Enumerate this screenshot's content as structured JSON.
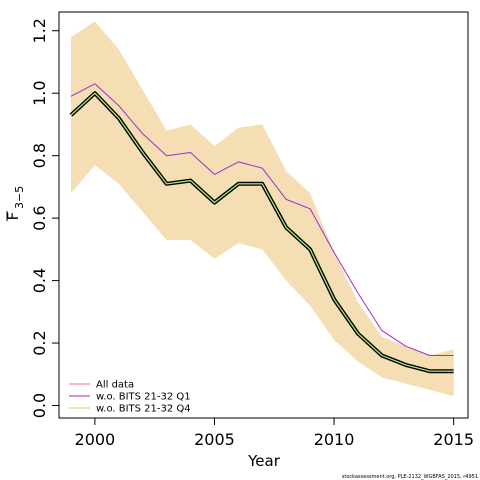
{
  "chart_data": {
    "type": "line",
    "xlabel": "Year",
    "ylabel": "F",
    "ylabel_subscript": "3−5",
    "xlim": [
      1998.5,
      2015.6
    ],
    "ylim": [
      -0.04,
      1.26
    ],
    "xticks": [
      2000,
      2005,
      2010,
      2015
    ],
    "yticks": [
      0.0,
      0.2,
      0.4,
      0.6,
      0.8,
      1.0,
      1.2
    ],
    "ytick_labels": [
      "0.0",
      "0.2",
      "0.4",
      "0.6",
      "0.8",
      "1.0",
      "1.2"
    ],
    "x": [
      1999,
      2000,
      2001,
      2002,
      2003,
      2004,
      2005,
      2006,
      2007,
      2008,
      2009,
      2010,
      2011,
      2012,
      2013,
      2014,
      2015
    ],
    "band": {
      "upper": [
        1.18,
        1.23,
        1.14,
        1.01,
        0.88,
        0.9,
        0.83,
        0.89,
        0.9,
        0.75,
        0.68,
        0.49,
        0.33,
        0.22,
        0.19,
        0.16,
        0.18
      ],
      "lower": [
        0.68,
        0.77,
        0.71,
        0.62,
        0.53,
        0.53,
        0.47,
        0.52,
        0.5,
        0.4,
        0.32,
        0.21,
        0.14,
        0.09,
        0.07,
        0.05,
        0.03
      ],
      "color": "#F5DEB3"
    },
    "series": [
      {
        "name": "All data",
        "color": "#FF6B8A",
        "values": [
          0.93,
          1.0,
          0.92,
          0.81,
          0.71,
          0.72,
          0.65,
          0.71,
          0.71,
          0.57,
          0.5,
          0.34,
          0.23,
          0.16,
          0.13,
          0.11,
          0.11
        ]
      },
      {
        "name": "w.o. BITS 21-32 Q1",
        "color": "#9B30C8",
        "values": [
          0.99,
          1.03,
          0.96,
          0.87,
          0.8,
          0.81,
          0.74,
          0.78,
          0.76,
          0.66,
          0.63,
          0.49,
          0.36,
          0.24,
          0.19,
          0.16,
          0.16
        ]
      },
      {
        "name": "w.o. BITS 21-32 Q4",
        "color": "#9AEA6E",
        "values": [
          0.93,
          1.0,
          0.92,
          0.81,
          0.71,
          0.72,
          0.65,
          0.71,
          0.71,
          0.57,
          0.5,
          0.34,
          0.23,
          0.16,
          0.13,
          0.11,
          0.11
        ]
      }
    ],
    "overlay_line_color": "#000000",
    "legend_position": "bottom-left"
  },
  "credit": "stockassessment.org, PLE-2132_WGBFAS_2015, r4951"
}
